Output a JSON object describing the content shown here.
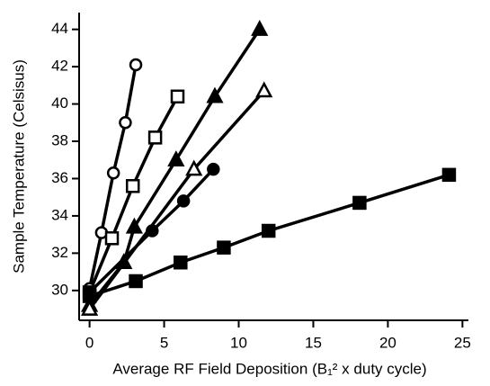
{
  "chart_data": {
    "type": "scatter",
    "xlabel": "Average RF Field Deposition (B₁² x duty cycle)",
    "ylabel": "Sample Temperature (Celsisus)",
    "xlim": [
      -0.7,
      25.4
    ],
    "ylim": [
      28.4,
      44.9
    ],
    "xticks": [
      0,
      5,
      10,
      15,
      20,
      25
    ],
    "yticks": [
      30,
      32,
      34,
      36,
      38,
      40,
      42,
      44
    ],
    "series": [
      {
        "color": "#000000",
        "marker": "circle",
        "filled": false,
        "x": [
          0,
          0.8,
          1.6,
          2.4,
          3.1
        ],
        "values": [
          30.1,
          33.1,
          36.3,
          39.0,
          42.1
        ]
      },
      {
        "color": "#000000",
        "marker": "square",
        "filled": false,
        "x": [
          0,
          1.5,
          2.9,
          4.4,
          5.9
        ],
        "values": [
          29.9,
          32.8,
          35.6,
          38.2,
          40.4
        ]
      },
      {
        "color": "#000000",
        "marker": "triangle",
        "filled": true,
        "x": [
          0,
          2.3,
          3.0,
          5.8,
          8.4,
          11.4
        ],
        "values": [
          29.2,
          31.5,
          33.4,
          37.0,
          40.4,
          44.0
        ]
      },
      {
        "color": "#000000",
        "marker": "triangle",
        "filled": false,
        "x": [
          0,
          7.0,
          11.7
        ],
        "values": [
          29.0,
          36.5,
          40.7
        ]
      },
      {
        "color": "#000000",
        "marker": "circle",
        "filled": true,
        "x": [
          0,
          4.2,
          6.3,
          8.3
        ],
        "values": [
          29.9,
          33.2,
          34.8,
          36.5
        ]
      },
      {
        "color": "#000000",
        "marker": "square",
        "filled": true,
        "x": [
          0,
          3.1,
          6.1,
          9.0,
          12.0,
          18.1,
          24.1
        ],
        "values": [
          29.7,
          30.5,
          31.5,
          32.3,
          33.2,
          34.7,
          36.2
        ]
      }
    ]
  }
}
